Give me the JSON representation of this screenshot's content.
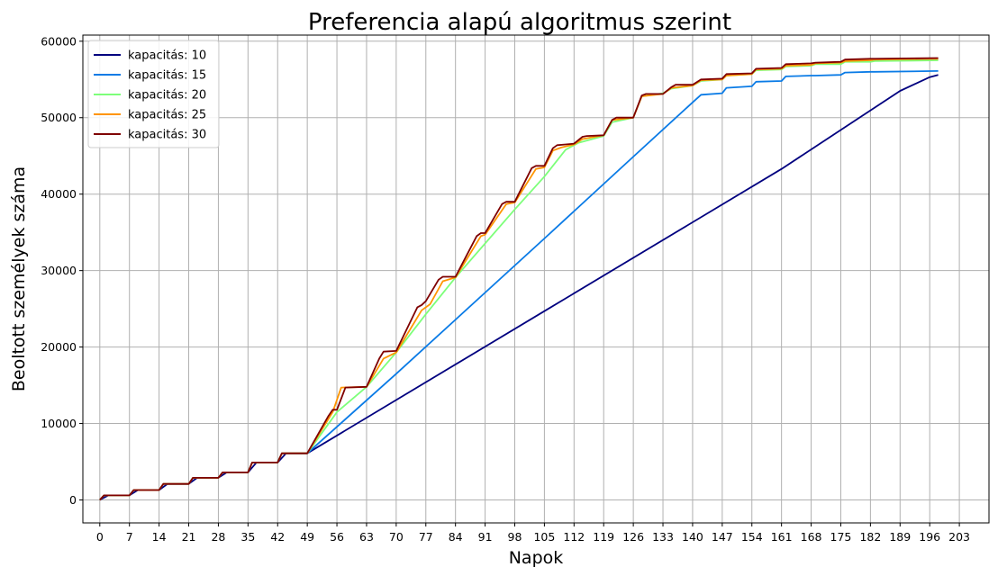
{
  "chart_data": {
    "type": "line",
    "title": "Preferencia alapú algoritmus szerint",
    "xlabel": "Napok",
    "ylabel": "Beoltott személyek száma",
    "xlim": [
      -4,
      210
    ],
    "ylim": [
      -3000,
      60800
    ],
    "grid": true,
    "legend_position": "top-left",
    "xticks": [
      0,
      7,
      14,
      21,
      28,
      35,
      42,
      49,
      56,
      63,
      70,
      77,
      84,
      91,
      98,
      105,
      112,
      119,
      126,
      133,
      140,
      147,
      154,
      161,
      168,
      175,
      182,
      189,
      196,
      203
    ],
    "yticks": [
      0,
      10000,
      20000,
      30000,
      40000,
      50000,
      60000
    ],
    "series": [
      {
        "name": "kapacitás: 10",
        "color": "#00007f",
        "x": [
          0,
          2,
          7,
          9,
          14,
          16,
          21,
          23,
          28,
          30,
          35,
          37,
          42,
          44,
          49,
          105,
          161,
          189,
          196,
          198
        ],
        "y": [
          0,
          600,
          600,
          1300,
          1300,
          2100,
          2100,
          2900,
          2900,
          3600,
          3600,
          4900,
          4900,
          6100,
          6100,
          24700,
          43300,
          53500,
          55300,
          55600
        ]
      },
      {
        "name": "kapacitás: 15",
        "color": "#0a7be6",
        "x": [
          0,
          1,
          7,
          8,
          14,
          15,
          21,
          22,
          28,
          29,
          35,
          36,
          42,
          43,
          49,
          70,
          105,
          126,
          140,
          142,
          147,
          148,
          154,
          155,
          161,
          162,
          168,
          169,
          175,
          176,
          182,
          183,
          198
        ],
        "y": [
          0,
          600,
          600,
          1300,
          1300,
          2100,
          2100,
          2900,
          2900,
          3600,
          3600,
          4900,
          4900,
          6100,
          6100,
          16500,
          34200,
          44900,
          52000,
          53000,
          53200,
          53900,
          54100,
          54700,
          54800,
          55400,
          55500,
          55500,
          55600,
          55900,
          56000,
          56000,
          56100
        ]
      },
      {
        "name": "kapacitás: 20",
        "color": "#7dff7a",
        "x": [
          0,
          1,
          7,
          8,
          14,
          15,
          21,
          22,
          28,
          29,
          35,
          36,
          42,
          43,
          49,
          56,
          63,
          70,
          77,
          84,
          98,
          105,
          110,
          113,
          119,
          121,
          126,
          128,
          133,
          135,
          140,
          142,
          147,
          148,
          154,
          155,
          161,
          162,
          168,
          169,
          175,
          176,
          182,
          183,
          198
        ],
        "y": [
          0,
          600,
          600,
          1300,
          1300,
          2100,
          2100,
          2900,
          2900,
          3600,
          3600,
          4900,
          4900,
          6100,
          6100,
          11500,
          14800,
          19300,
          24300,
          29100,
          38000,
          42300,
          45800,
          46700,
          47600,
          49400,
          50000,
          52800,
          53200,
          53800,
          54200,
          54800,
          55000,
          55500,
          55700,
          56200,
          56300,
          56700,
          56800,
          57000,
          57000,
          57300,
          57300,
          57400,
          57500
        ]
      },
      {
        "name": "kapacitás: 25",
        "color": "#ff9500",
        "x": [
          0,
          1,
          7,
          8,
          14,
          15,
          21,
          22,
          28,
          29,
          35,
          36,
          42,
          43,
          49,
          55,
          57,
          63,
          67,
          70,
          76,
          78,
          81,
          84,
          90,
          91,
          96,
          98,
          103,
          105,
          107,
          109,
          112,
          114,
          119,
          121,
          126,
          128,
          133,
          135,
          140,
          142,
          147,
          148,
          154,
          155,
          161,
          162,
          168,
          169,
          175,
          176,
          182,
          183,
          198
        ],
        "y": [
          0,
          600,
          600,
          1300,
          1300,
          2100,
          2100,
          2900,
          2900,
          3600,
          3600,
          4900,
          4900,
          6100,
          6100,
          11500,
          14700,
          14800,
          18500,
          19300,
          24800,
          25600,
          28600,
          29100,
          34500,
          34700,
          38700,
          38900,
          43300,
          43500,
          45700,
          46100,
          46500,
          47200,
          47700,
          49700,
          50000,
          52800,
          53100,
          53900,
          54200,
          54900,
          55000,
          55500,
          55700,
          56300,
          56400,
          56800,
          56900,
          57100,
          57200,
          57400,
          57500,
          57600,
          57700
        ]
      },
      {
        "name": "kapacitás: 30",
        "color": "#7f0000",
        "x": [
          0,
          1,
          7,
          8,
          14,
          15,
          21,
          22,
          28,
          29,
          35,
          36,
          42,
          43,
          49,
          54,
          55,
          56,
          58,
          63,
          66,
          67,
          70,
          75,
          76,
          77,
          80,
          81,
          84,
          89,
          90,
          91,
          95,
          96,
          98,
          102,
          103,
          105,
          107,
          108,
          110,
          112,
          114,
          115,
          119,
          121,
          122,
          126,
          128,
          129,
          133,
          135,
          136,
          140,
          142,
          147,
          148,
          154,
          155,
          161,
          162,
          168,
          169,
          175,
          176,
          182,
          183,
          198
        ],
        "y": [
          0,
          600,
          600,
          1300,
          1300,
          2100,
          2100,
          2900,
          2900,
          3600,
          3600,
          4900,
          4900,
          6100,
          6100,
          11000,
          11800,
          11800,
          14700,
          14800,
          18500,
          19400,
          19500,
          25200,
          25500,
          26000,
          28800,
          29200,
          29200,
          34500,
          34900,
          34900,
          38700,
          39000,
          39000,
          43400,
          43700,
          43700,
          46000,
          46400,
          46500,
          46600,
          47500,
          47600,
          47700,
          49700,
          50000,
          50000,
          52900,
          53100,
          53100,
          54000,
          54300,
          54300,
          55000,
          55100,
          55700,
          55800,
          56400,
          56500,
          57000,
          57100,
          57200,
          57300,
          57600,
          57700,
          57700,
          57800
        ]
      }
    ]
  }
}
